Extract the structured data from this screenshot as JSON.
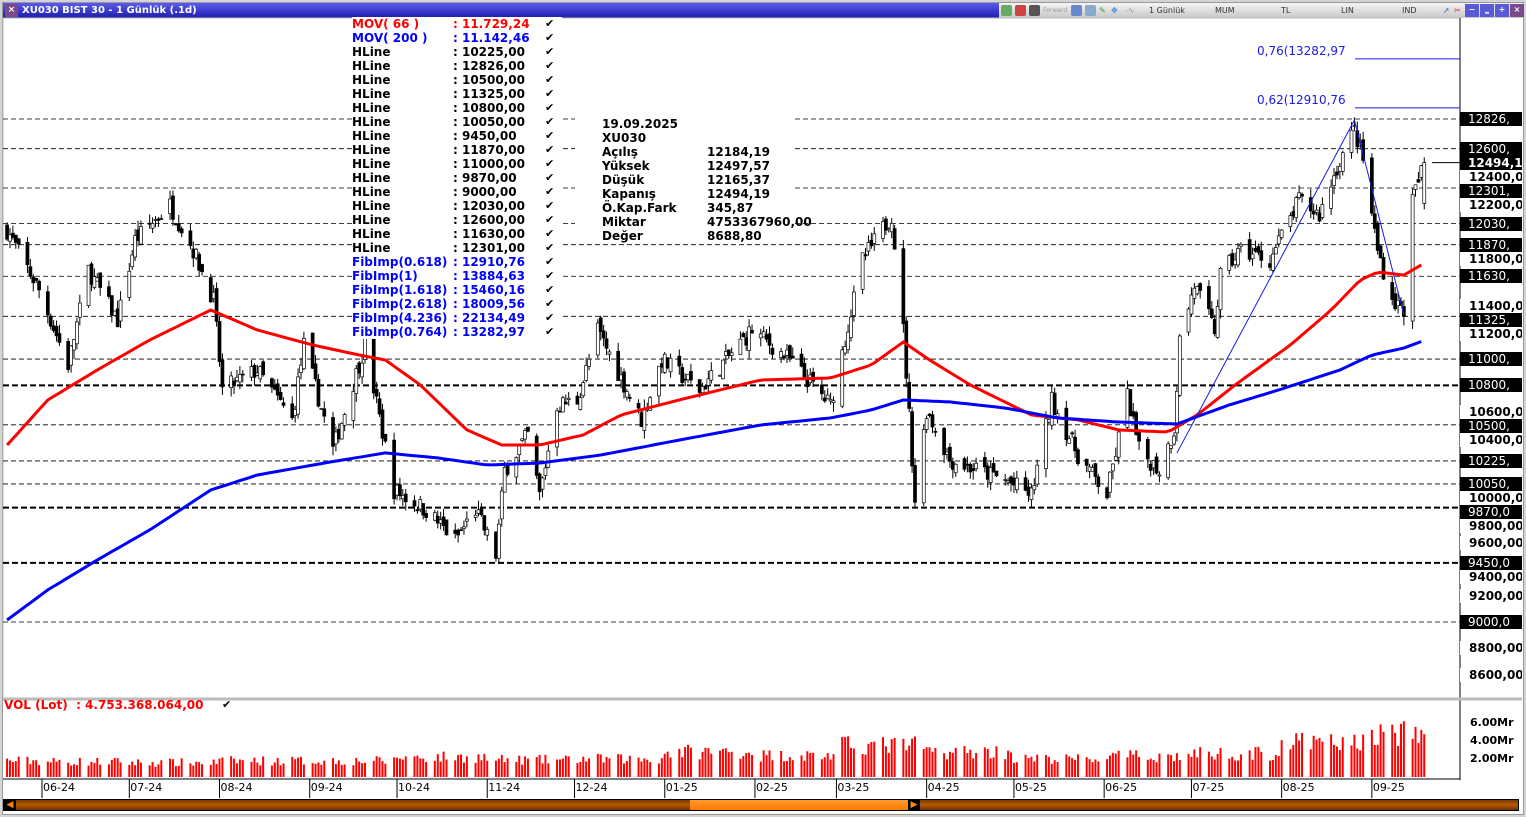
{
  "window": {
    "title": "XU030 BIST 30 - 1 Günlük (.1d)",
    "close_label": "×"
  },
  "toolbar": {
    "forward_label": "Forward",
    "period": "1 Günlük",
    "chart_type": "MUM",
    "currency": "TL",
    "scale": "LIN",
    "indicators": "IND",
    "buttons": [
      "−",
      "‗",
      "+",
      "×"
    ]
  },
  "legend": [
    {
      "name": "MOV( 66 )",
      "value": ": 11.729,24",
      "color": "#ff0000"
    },
    {
      "name": "MOV( 200 )",
      "value": ": 11.142,46",
      "color": "#0000ff"
    },
    {
      "name": "HLine",
      "value": ": 10225,00",
      "color": "#000000"
    },
    {
      "name": "HLine",
      "value": ": 12826,00",
      "color": "#000000"
    },
    {
      "name": "HLine",
      "value": ": 10500,00",
      "color": "#000000"
    },
    {
      "name": "HLine",
      "value": ": 11325,00",
      "color": "#000000"
    },
    {
      "name": "HLine",
      "value": ": 10800,00",
      "color": "#000000"
    },
    {
      "name": "HLine",
      "value": ": 10050,00",
      "color": "#000000"
    },
    {
      "name": "HLine",
      "value": ": 9450,00",
      "color": "#000000"
    },
    {
      "name": "HLine",
      "value": ": 11870,00",
      "color": "#000000"
    },
    {
      "name": "HLine",
      "value": ": 11000,00",
      "color": "#000000"
    },
    {
      "name": "HLine",
      "value": ": 9870,00",
      "color": "#000000"
    },
    {
      "name": "HLine",
      "value": ": 9000,00",
      "color": "#000000"
    },
    {
      "name": "HLine",
      "value": ": 12030,00",
      "color": "#000000"
    },
    {
      "name": "HLine",
      "value": ": 12600,00",
      "color": "#000000"
    },
    {
      "name": "HLine",
      "value": ": 11630,00",
      "color": "#000000"
    },
    {
      "name": "HLine",
      "value": ": 12301,00",
      "color": "#000000"
    },
    {
      "name": "FibImp(0.618)",
      "value": ": 12910,76",
      "color": "#0000ff"
    },
    {
      "name": "FibImp(1)",
      "value": ": 13884,63",
      "color": "#0000ff"
    },
    {
      "name": "FibImp(1.618)",
      "value": ": 15460,16",
      "color": "#0000ff"
    },
    {
      "name": "FibImp(2.618)",
      "value": ": 18009,56",
      "color": "#0000ff"
    },
    {
      "name": "FibImp(4.236)",
      "value": ": 22134,49",
      "color": "#0000ff"
    },
    {
      "name": "FibImp(0.764)",
      "value": ": 13282,97",
      "color": "#0000ff"
    }
  ],
  "legend_check": "✔",
  "info": {
    "date": "19.09.2025",
    "symbol": "XU030",
    "rows": [
      {
        "label": "Açılış",
        "value": "12184,19"
      },
      {
        "label": "Yüksek",
        "value": "12497,57"
      },
      {
        "label": "Düşük",
        "value": "12165,37"
      },
      {
        "label": "Kapanış",
        "value": "12494,19"
      },
      {
        "label": "Ö.Kap.Fark",
        "value": "345,87"
      },
      {
        "label": "Miktar",
        "value": "4753367960,00"
      },
      {
        "label": "Değer",
        "value": "8688,80"
      }
    ]
  },
  "chart_data": {
    "type": "candlestick",
    "symbol": "XU030",
    "x_ticks": [
      "06-24",
      "07-24",
      "08-24",
      "09-24",
      "10-24",
      "11-24",
      "12-24",
      "01-25",
      "02-25",
      "03-25",
      "04-25",
      "05-25",
      "06-25",
      "07-25",
      "08-25",
      "09-25"
    ],
    "y_ticks": [
      "12400,00",
      "12200,00",
      "11800,00",
      "11400,00",
      "11200,00",
      "10600,00",
      "10400,00",
      "10000,00",
      "9800,00",
      "9600,00",
      "9400,00",
      "9200,00",
      "8800,00",
      "8600,00"
    ],
    "ylim": [
      8500,
      13400
    ],
    "current_price_label": "12494,1",
    "close_path": [
      [
        "2024-05-20",
        11982
      ],
      [
        "2024-05-31",
        11525
      ],
      [
        "2024-06-10",
        10955
      ],
      [
        "2024-06-17",
        11677
      ],
      [
        "2024-06-27",
        11297
      ],
      [
        "2024-07-03",
        11906
      ],
      [
        "2024-07-15",
        12172
      ],
      [
        "2024-07-23",
        11830
      ],
      [
        "2024-07-30",
        11450
      ],
      [
        "2024-08-02",
        10765
      ],
      [
        "2024-08-14",
        10917
      ],
      [
        "2024-08-26",
        10537
      ],
      [
        "2024-08-30",
        11107
      ],
      [
        "2024-09-09",
        10308
      ],
      [
        "2024-09-20",
        11107
      ],
      [
        "2024-09-30",
        10004
      ],
      [
        "2024-10-11",
        9852
      ],
      [
        "2024-10-21",
        9624
      ],
      [
        "2024-10-28",
        9852
      ],
      [
        "2024-11-04",
        9510
      ],
      [
        "2024-11-07",
        10156
      ],
      [
        "2024-11-15",
        10422
      ],
      [
        "2024-11-19",
        9966
      ],
      [
        "2024-11-25",
        10650
      ],
      [
        "2024-12-02",
        10688
      ],
      [
        "2024-12-09",
        11221
      ],
      [
        "2024-12-24",
        10537
      ],
      [
        "2024-12-31",
        10993
      ],
      [
        "2025-01-13",
        10765
      ],
      [
        "2025-01-31",
        11221
      ],
      [
        "2025-02-13",
        10993
      ],
      [
        "2025-02-27",
        10650
      ],
      [
        "2025-03-10",
        11754
      ],
      [
        "2025-03-20",
        12096
      ],
      [
        "2025-03-24",
        11221
      ],
      [
        "2025-03-28",
        9928
      ],
      [
        "2025-04-01",
        10612
      ],
      [
        "2025-04-09",
        10232
      ],
      [
        "2025-04-28",
        10080
      ],
      [
        "2025-05-07",
        9966
      ],
      [
        "2025-05-14",
        10688
      ],
      [
        "2025-05-23",
        10270
      ],
      [
        "2025-06-02",
        9966
      ],
      [
        "2025-06-09",
        10726
      ],
      [
        "2025-06-13",
        10308
      ],
      [
        "2025-06-20",
        10156
      ],
      [
        "2025-06-25",
        10460
      ],
      [
        "2025-06-27",
        11145
      ],
      [
        "2025-07-02",
        11563
      ],
      [
        "2025-07-09",
        11221
      ],
      [
        "2025-07-11",
        11639
      ],
      [
        "2025-07-18",
        11830
      ],
      [
        "2025-07-28",
        11754
      ],
      [
        "2025-08-07",
        12210
      ],
      [
        "2025-08-14",
        12096
      ],
      [
        "2025-08-21",
        12514
      ],
      [
        "2025-08-26",
        12742
      ],
      [
        "2025-08-29",
        12514
      ],
      [
        "2025-09-03",
        11830
      ],
      [
        "2025-09-08",
        11450
      ],
      [
        "2025-09-12",
        11374
      ],
      [
        "2025-09-15",
        12210
      ],
      [
        "2025-09-19",
        12494
      ]
    ],
    "series": [
      {
        "name": "MOV( 66 )",
        "color": "#ff0000",
        "values": [
          [
            "2024-05-20",
            10346
          ],
          [
            "2024-06-03",
            10689
          ],
          [
            "2024-06-20",
            10917
          ],
          [
            "2024-07-08",
            11145
          ],
          [
            "2024-07-29",
            11373
          ],
          [
            "2024-08-14",
            11221
          ],
          [
            "2024-09-02",
            11107
          ],
          [
            "2024-09-18",
            11031
          ],
          [
            "2024-09-27",
            10993
          ],
          [
            "2024-10-09",
            10803
          ],
          [
            "2024-10-25",
            10461
          ],
          [
            "2024-11-06",
            10346
          ],
          [
            "2024-11-19",
            10346
          ],
          [
            "2024-12-04",
            10423
          ],
          [
            "2024-12-17",
            10575
          ],
          [
            "2025-01-06",
            10689
          ],
          [
            "2025-02-03",
            10841
          ],
          [
            "2025-02-27",
            10856
          ],
          [
            "2025-03-13",
            10955
          ],
          [
            "2025-03-24",
            11130
          ],
          [
            "2025-04-02",
            10993
          ],
          [
            "2025-04-16",
            10803
          ],
          [
            "2025-05-07",
            10575
          ],
          [
            "2025-05-23",
            10537
          ],
          [
            "2025-06-06",
            10461
          ],
          [
            "2025-06-23",
            10445
          ],
          [
            "2025-07-03",
            10575
          ],
          [
            "2025-07-16",
            10803
          ],
          [
            "2025-08-04",
            11107
          ],
          [
            "2025-08-18",
            11373
          ],
          [
            "2025-08-28",
            11601
          ],
          [
            "2025-09-03",
            11662
          ],
          [
            "2025-09-12",
            11639
          ],
          [
            "2025-09-19",
            11729
          ]
        ]
      },
      {
        "name": "MOV( 200 )",
        "color": "#0000ff",
        "values": [
          [
            "2024-05-20",
            9015
          ],
          [
            "2024-06-03",
            9244
          ],
          [
            "2024-06-20",
            9472
          ],
          [
            "2024-07-08",
            9700
          ],
          [
            "2024-07-29",
            10004
          ],
          [
            "2024-08-14",
            10118
          ],
          [
            "2024-09-08",
            10217
          ],
          [
            "2024-09-27",
            10286
          ],
          [
            "2024-10-15",
            10248
          ],
          [
            "2024-11-01",
            10194
          ],
          [
            "2024-11-19",
            10209
          ],
          [
            "2024-12-10",
            10270
          ],
          [
            "2025-01-06",
            10384
          ],
          [
            "2025-02-03",
            10499
          ],
          [
            "2025-02-27",
            10552
          ],
          [
            "2025-03-13",
            10613
          ],
          [
            "2025-03-24",
            10689
          ],
          [
            "2025-04-09",
            10674
          ],
          [
            "2025-04-28",
            10628
          ],
          [
            "2025-05-16",
            10552
          ],
          [
            "2025-06-06",
            10521
          ],
          [
            "2025-06-26",
            10506
          ],
          [
            "2025-07-14",
            10651
          ],
          [
            "2025-07-31",
            10765
          ],
          [
            "2025-08-21",
            10917
          ],
          [
            "2025-09-01",
            11031
          ],
          [
            "2025-09-12",
            11084
          ],
          [
            "2025-09-19",
            11142
          ]
        ]
      }
    ],
    "hlines": [
      {
        "value": 12826,
        "label": "12826,",
        "bold": false
      },
      {
        "value": 12600,
        "label": "12600,",
        "bold": false
      },
      {
        "value": 12301,
        "label": "12301,",
        "bold": false
      },
      {
        "value": 12030,
        "label": "12030,",
        "bold": false
      },
      {
        "value": 11870,
        "label": "11870,",
        "bold": false
      },
      {
        "value": 11630,
        "label": "11630,",
        "bold": false
      },
      {
        "value": 11325,
        "label": "11325,",
        "bold": false
      },
      {
        "value": 11000,
        "label": "11000,",
        "bold": false
      },
      {
        "value": 10800,
        "label": "10800,",
        "bold": true
      },
      {
        "value": 10500,
        "label": "10500,",
        "bold": false
      },
      {
        "value": 10225,
        "label": "10225,",
        "bold": false
      },
      {
        "value": 10050,
        "label": "10050,",
        "bold": false
      },
      {
        "value": 9870,
        "label": "9870,0",
        "bold": true
      },
      {
        "value": 9450,
        "label": "9450,0",
        "bold": true
      },
      {
        "value": 9000,
        "label": "9000,0",
        "bold": false
      }
    ],
    "trendline": [
      [
        "2025-06-26",
        10285
      ],
      [
        "2025-08-26",
        12818
      ],
      [
        "2025-09-12",
        11335
      ]
    ],
    "fib_levels": [
      {
        "label": "0,76(13282,97",
        "value": 13283
      },
      {
        "label": "0,62(12910,76",
        "value": 12911
      }
    ],
    "volume": {
      "label": "VOL (Lot)",
      "value_label": ": 4.753.368.064,00",
      "unit": "Mr",
      "y_ticks": [
        "6.00Mr",
        "4.00Mr",
        "2.00Mr"
      ],
      "monthly_level_mr": {
        "2024-05": 1.8,
        "2024-06": 1.7,
        "2024-07": 1.6,
        "2024-08": 1.8,
        "2024-09": 1.8,
        "2024-10": 2.2,
        "2024-11": 1.9,
        "2024-12": 2.0,
        "2025-01": 2.8,
        "2025-02": 2.4,
        "2025-03": 3.5,
        "2025-04": 2.8,
        "2025-05": 2.0,
        "2025-06": 2.3,
        "2025-07": 2.6,
        "2025-08": 3.8,
        "2025-09": 4.8
      },
      "last_mr": 4.75,
      "color": "#ff0000"
    }
  }
}
